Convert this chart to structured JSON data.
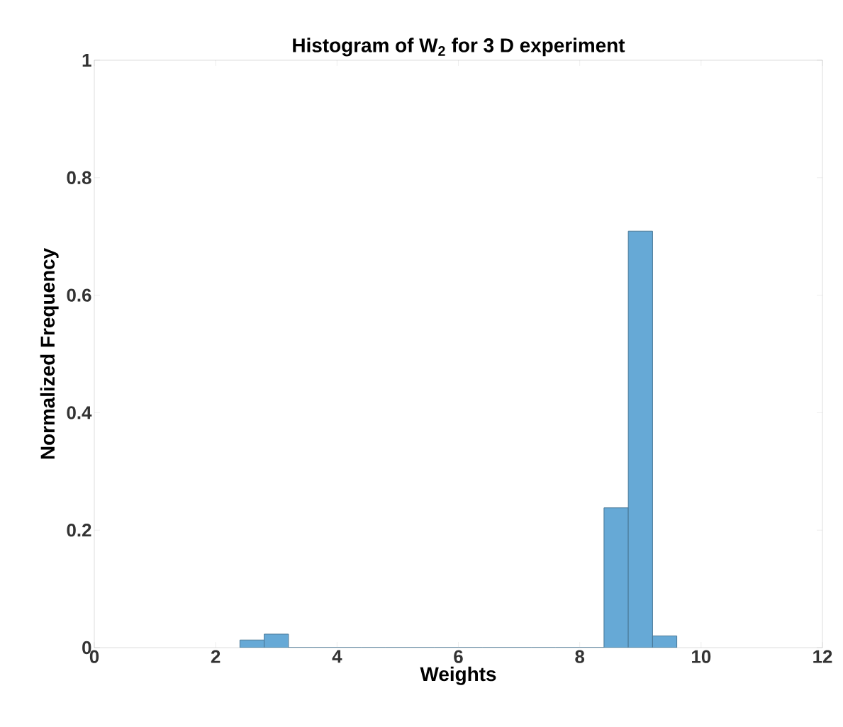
{
  "chart_data": {
    "type": "histogram",
    "title": "Histogram of W$_{2}$ for 3 D experiment",
    "xlabel": "Weights",
    "ylabel": "Normalized Frequency",
    "bins": [
      2.4,
      2.8,
      3.2,
      3.6,
      4.0,
      4.4,
      4.8,
      5.2,
      5.6,
      6.0,
      6.4,
      6.8,
      7.2,
      7.6,
      8.0,
      8.4,
      8.8,
      9.2,
      9.6
    ],
    "values": [
      0.013,
      0.023,
      0,
      0,
      0,
      0,
      0,
      0,
      0,
      0,
      0,
      0,
      0,
      0,
      0,
      0.238,
      0.709,
      0.02
    ],
    "color": "#66a9d6",
    "xlim": [
      0,
      12
    ],
    "xticks": [
      0,
      2,
      4,
      6,
      8,
      10,
      12
    ],
    "ylim": [
      0,
      1
    ],
    "yticks": [
      0,
      0.2,
      0.4,
      0.6,
      0.8,
      1
    ],
    "grid": false
  }
}
